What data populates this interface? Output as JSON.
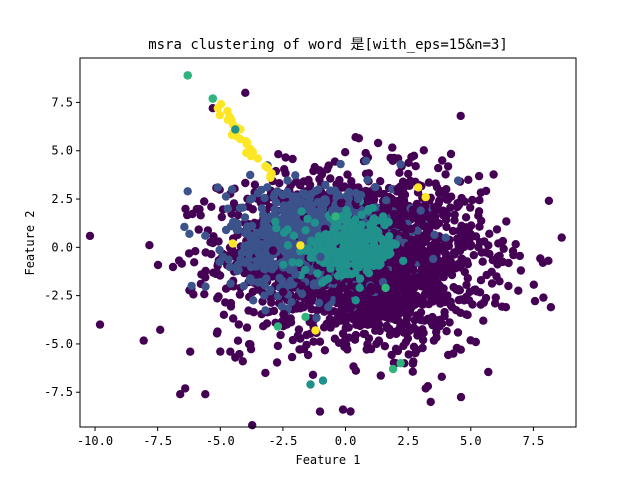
{
  "chart_data": {
    "type": "scatter",
    "title": "msra clustering of word 是[with_eps=15&n=3]",
    "xlabel": "Feature 1",
    "ylabel": "Feature 2",
    "xlim": [
      -10.6,
      9.2
    ],
    "ylim": [
      -9.3,
      9.8
    ],
    "xticks": [
      -10.0,
      -7.5,
      -5.0,
      -2.5,
      0.0,
      2.5,
      5.0,
      7.5
    ],
    "xtick_labels": [
      "-10.0",
      "-7.5",
      "-5.0",
      "-2.5",
      "0.0",
      "2.5",
      "5.0",
      "7.5"
    ],
    "yticks": [
      -7.5,
      -5.0,
      -2.5,
      0.0,
      2.5,
      5.0,
      7.5
    ],
    "ytick_labels": [
      "-7.5",
      "-5.0",
      "-2.5",
      "0.0",
      "2.5",
      "5.0",
      "7.5"
    ],
    "grid": false,
    "colors": {
      "purple": "#440154",
      "blue": "#3b528b",
      "teal": "#21918c",
      "green": "#2fb47c",
      "yellow": "#fde725"
    },
    "series": [
      {
        "color": "#440154",
        "approx_points": 1800,
        "x": [
          -9.8,
          -6.6,
          -6.4,
          -5.6,
          -4.6,
          -4.4,
          -4.1,
          -3.2,
          -2.7,
          -2.1,
          -1.3,
          0.2,
          0.4,
          0.4,
          1.3,
          2.1,
          2.5,
          2.8,
          3.2,
          3.4,
          3.6,
          3.7,
          3.9,
          4.3,
          4.6,
          5.2,
          5.5,
          5.7,
          6.0,
          6.4,
          6.5,
          6.7,
          7.0,
          7.9,
          8.2,
          2.0,
          -0.1,
          -5.3,
          -4.0,
          -6.2
        ],
        "y": [
          -4.0,
          -7.6,
          -7.3,
          -7.6,
          -5.4,
          -5.7,
          -5.9,
          -6.5,
          -5.1,
          -4.8,
          -6.6,
          -8.5,
          2.3,
          5.7,
          5.4,
          4.6,
          3.8,
          4.2,
          -7.3,
          -8.0,
          3.3,
          4.1,
          2.8,
          -5.5,
          -5.3,
          -4.9,
          -3.8,
          0.1,
          -2.6,
          -3.1,
          -2.0,
          -0.4,
          -1.2,
          -2.6,
          -3.1,
          -6.0,
          -8.4,
          7.2,
          8.0,
          -5.4
        ]
      },
      {
        "color": "#3b528b",
        "approx_points": 700,
        "x": [
          -6.3,
          -5.6,
          -5.1,
          -4.7,
          -4.3,
          -4.0,
          -3.5,
          -3.0,
          -2.5,
          -2.0,
          -1.5,
          -1.0,
          -0.5,
          0.5,
          1.5,
          2.2,
          3.0,
          3.5,
          4.0
        ],
        "y": [
          2.9,
          0.6,
          3.1,
          2.0,
          1.2,
          -0.8,
          2.8,
          -2.2,
          1.5,
          -1.4,
          2.2,
          -0.5,
          1.8,
          2.5,
          -1.8,
          4.3,
          1.9,
          -0.6,
          0.5
        ]
      },
      {
        "color": "#21918c",
        "approx_points": 250,
        "x": [
          -6.3,
          -5.3,
          -4.4,
          -1.4,
          -0.9,
          -0.3,
          0.0,
          0.3,
          0.7,
          1.1,
          1.5,
          1.9,
          2.3,
          -0.6,
          0.9,
          1.6
        ],
        "y": [
          8.9,
          7.7,
          6.1,
          -7.1,
          -6.9,
          0.6,
          -0.9,
          1.2,
          -0.4,
          0.8,
          1.6,
          0.2,
          -0.7,
          -1.1,
          1.9,
          -0.2
        ]
      },
      {
        "color": "#2fb47c",
        "approx_points": 40,
        "x": [
          -6.3,
          -5.3,
          -2.7,
          -1.6,
          1.9,
          2.2,
          1.6,
          -0.4
        ],
        "y": [
          8.9,
          7.7,
          -4.1,
          -3.6,
          -6.3,
          -6.0,
          -2.1,
          1.6
        ]
      },
      {
        "color": "#fde725",
        "approx_points": 35,
        "x": [
          -5.1,
          -4.7,
          -4.5,
          -4.2,
          -3.8,
          -3.5,
          -3.2,
          -4.5,
          -1.8,
          -1.2,
          3.2,
          2.9,
          -3.0
        ],
        "y": [
          7.2,
          6.6,
          5.9,
          5.6,
          5.1,
          4.6,
          4.2,
          0.2,
          0.1,
          -4.3,
          2.6,
          3.1,
          3.6
        ]
      }
    ]
  }
}
